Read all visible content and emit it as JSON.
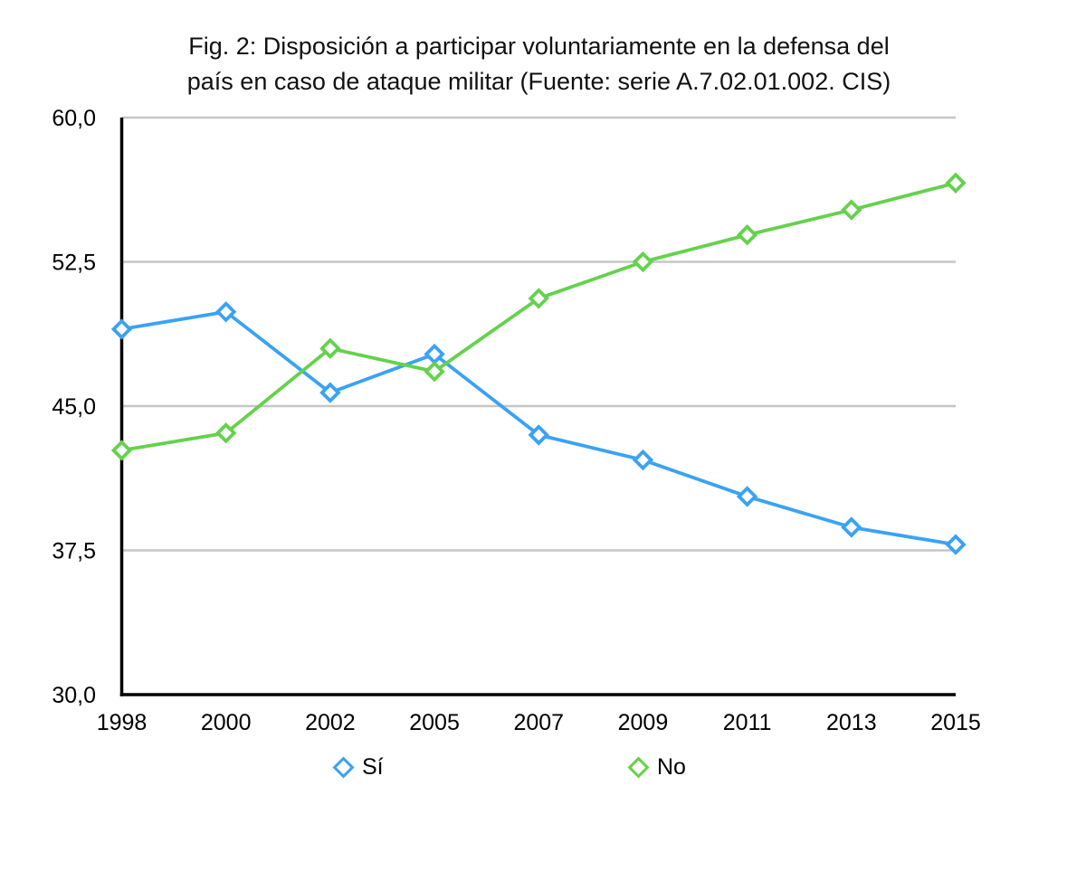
{
  "figure": {
    "title_line1": "Fig. 2: Disposición a participar voluntariamente en la defensa del",
    "title_line2": "país en caso de ataque militar (Fuente: serie A.7.02.01.002. CIS)"
  },
  "chart_data": {
    "type": "line",
    "title": "Fig. 2: Disposición a participar voluntariamente en la defensa del país en caso de ataque militar (Fuente: serie A.7.02.01.002. CIS)",
    "categories": [
      "1998",
      "2000",
      "2002",
      "2005",
      "2007",
      "2009",
      "2011",
      "2013",
      "2015"
    ],
    "series": [
      {
        "id": "si",
        "name": "Sí",
        "color": "#3aa2f4",
        "marker": "open-diamond",
        "values": [
          49.0,
          49.9,
          45.7,
          47.7,
          43.5,
          42.2,
          40.3,
          38.7,
          37.8
        ]
      },
      {
        "id": "no",
        "name": "No",
        "color": "#64d24c",
        "marker": "open-diamond",
        "values": [
          42.7,
          43.6,
          48.0,
          46.8,
          50.6,
          52.5,
          53.9,
          55.2,
          56.6
        ]
      }
    ],
    "ylim": [
      30,
      60
    ],
    "yticks": [
      30,
      37.5,
      45,
      52.5,
      60
    ],
    "ytick_labels": [
      "30,0",
      "37,5",
      "45,0",
      "52,5",
      "60,0"
    ],
    "xlabel": "",
    "ylabel": "",
    "grid": "horizontal",
    "legend_position": "bottom",
    "colors": {
      "axis": "#000000",
      "gridline": "#c6c6c6",
      "text": "#000000",
      "background": "#ffffff"
    }
  }
}
